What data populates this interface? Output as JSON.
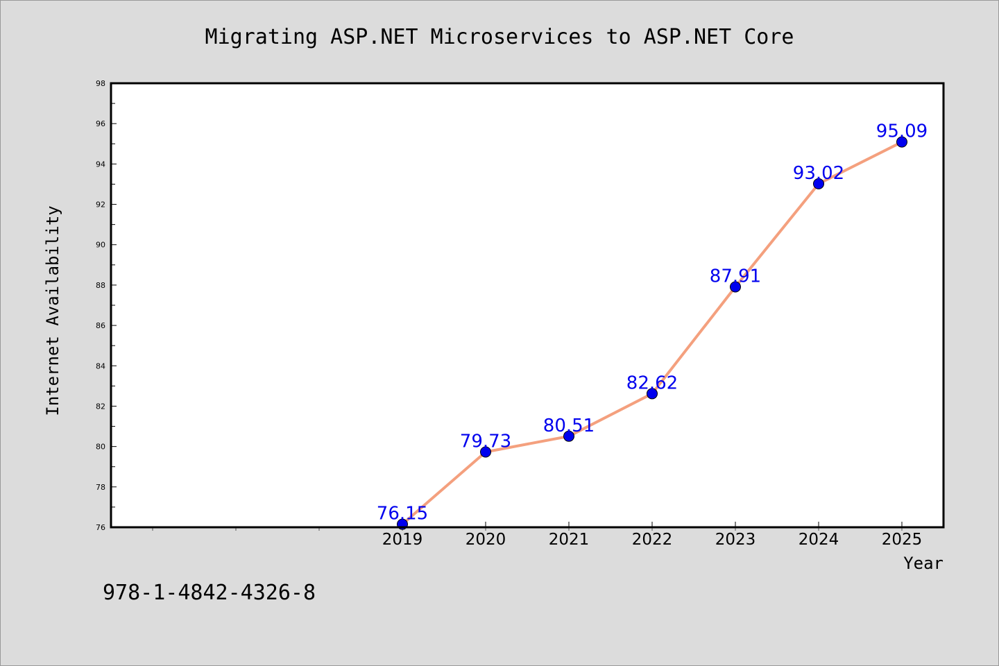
{
  "chart_data": {
    "type": "line",
    "title": "Migrating ASP.NET Microservices to ASP.NET Core",
    "xlabel": "Year",
    "ylabel": "Internet Availability",
    "footer_text": "978-1-4842-4326-8",
    "x": [
      2019,
      2020,
      2021,
      2022,
      2023,
      2024,
      2025
    ],
    "x_tick_labels": [
      "2019",
      "2020",
      "2021",
      "2022",
      "2023",
      "2024",
      "2025"
    ],
    "series": [
      {
        "values": [
          76.15,
          79.73,
          80.51,
          82.62,
          87.91,
          93.02,
          95.09
        ],
        "data_labels": [
          "76.15",
          "79.73",
          "80.51",
          "82.62",
          "87.91",
          "93.02",
          "95.09"
        ],
        "line_color": "#f4a07e",
        "marker_color": "#0000ee"
      }
    ],
    "xlim": [
      2015.5,
      2025.5
    ],
    "ylim": [
      76,
      98
    ],
    "y_ticks": [
      76,
      78,
      80,
      82,
      84,
      86,
      88,
      90,
      92,
      94,
      96,
      98
    ],
    "y_tick_labels": [
      "76",
      "78",
      "80",
      "82",
      "84",
      "86",
      "88",
      "90",
      "92",
      "94",
      "96",
      "98"
    ],
    "grid": false,
    "legend": "none",
    "colors": {
      "page_background": "#dcdcdc",
      "plot_background": "#ffffff",
      "axis": "#000000",
      "label_text": "#0000ee"
    }
  }
}
